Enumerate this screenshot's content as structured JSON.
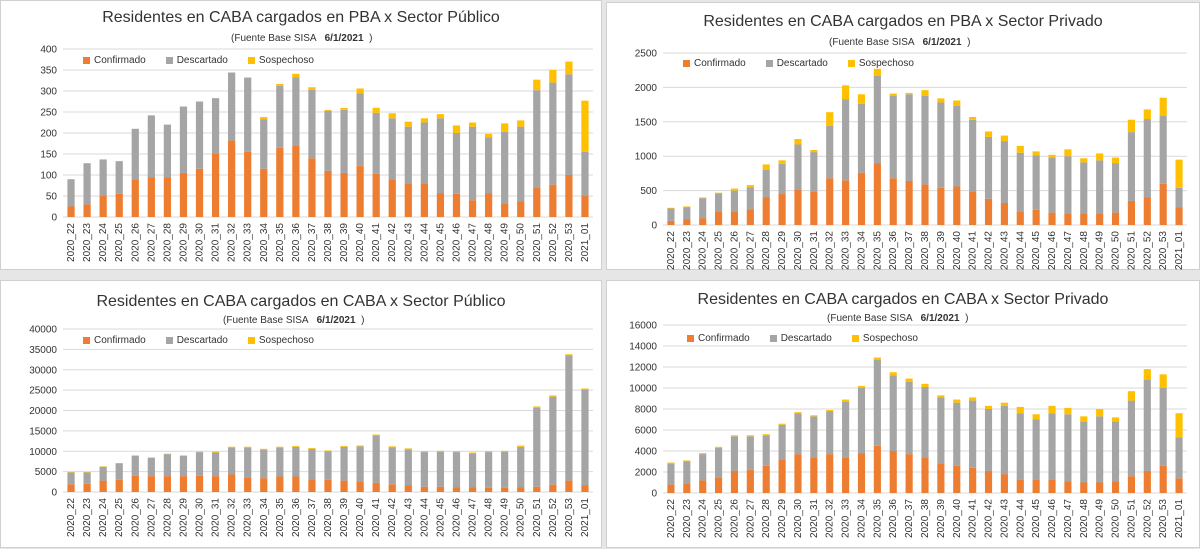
{
  "colors": {
    "confirmado": "#ED7D31",
    "descartado": "#A5A5A5",
    "sospechoso": "#FFC000",
    "grid": "#d9d9d9",
    "axis_text": "#333333"
  },
  "legend": {
    "confirmado": "Confirmado",
    "descartado": "Descartado",
    "sospechoso": "Sospechoso"
  },
  "source": {
    "label": "(Fuente  Base SISA",
    "date": "6/1/2021",
    "close": ")"
  },
  "charts": [
    {
      "title": "Residentes en CABA cargados en PBA x Sector Público"
    },
    {
      "title": "Residentes en CABA cargados en PBA x Sector Privado"
    },
    {
      "title": "Residentes en CABA cargados en CABA x Sector Público"
    },
    {
      "title": "Residentes en CABA cargados en CABA x Sector Privado"
    }
  ],
  "chart_data": [
    {
      "type": "bar",
      "stacked": true,
      "title": "Residentes en CABA cargados en PBA x Sector Público",
      "categories": [
        "2020_22",
        "2020_23",
        "2020_24",
        "2020_25",
        "2020_26",
        "2020_27",
        "2020_28",
        "2020_29",
        "2020_30",
        "2020_31",
        "2020_32",
        "2020_33",
        "2020_34",
        "2020_35",
        "2020_36",
        "2020_37",
        "2020_38",
        "2020_39",
        "2020_40",
        "2020_41",
        "2020_42",
        "2020_43",
        "2020_44",
        "2020_45",
        "2020_46",
        "2020_47",
        "2020_48",
        "2020_49",
        "2020_50",
        "2020_51",
        "2020_52",
        "2020_53",
        "2021_01"
      ],
      "yticks": [
        "0",
        "50",
        "100",
        "150",
        "200",
        "250",
        "300",
        "350",
        "400"
      ],
      "ylim": [
        0,
        400
      ],
      "grid": true,
      "legend_position": "top-left",
      "series": [
        {
          "name": "Confirmado",
          "values": [
            25,
            30,
            50,
            55,
            90,
            95,
            95,
            105,
            115,
            150,
            182,
            155,
            115,
            165,
            170,
            140,
            110,
            105,
            122,
            103,
            90,
            80,
            80,
            57,
            55,
            40,
            57,
            33,
            37,
            70,
            77,
            100,
            50
          ]
        },
        {
          "name": "Descartado",
          "values": [
            65,
            98,
            87,
            78,
            120,
            147,
            125,
            158,
            160,
            133,
            162,
            177,
            118,
            147,
            163,
            163,
            143,
            150,
            172,
            145,
            145,
            135,
            145,
            178,
            145,
            175,
            133,
            170,
            178,
            232,
            243,
            240,
            105
          ]
        },
        {
          "name": "Sospechoso",
          "values": [
            0,
            0,
            0,
            0,
            0,
            0,
            0,
            0,
            0,
            0,
            0,
            0,
            5,
            5,
            8,
            6,
            2,
            5,
            12,
            12,
            12,
            12,
            10,
            10,
            18,
            10,
            8,
            20,
            15,
            25,
            30,
            30,
            122
          ]
        }
      ]
    },
    {
      "type": "bar",
      "stacked": true,
      "title": "Residentes en CABA cargados en PBA x Sector Privado",
      "categories": [
        "2020_22",
        "2020_23",
        "2020_24",
        "2020_25",
        "2020_26",
        "2020_27",
        "2020_28",
        "2020_29",
        "2020_30",
        "2020_31",
        "2020_32",
        "2020_33",
        "2020_34",
        "2020_35",
        "2020_36",
        "2020_37",
        "2020_38",
        "2020_39",
        "2020_40",
        "2020_41",
        "2020_42",
        "2020_43",
        "2020_44",
        "2020_45",
        "2020_46",
        "2020_47",
        "2020_48",
        "2020_49",
        "2020_50",
        "2020_51",
        "2020_52",
        "2020_53",
        "2021_01"
      ],
      "yticks": [
        "0",
        "500",
        "1000",
        "1500",
        "2000",
        "2500"
      ],
      "ylim": [
        0,
        2500
      ],
      "grid": true,
      "legend_position": "top-left",
      "series": [
        {
          "name": "Confirmado",
          "values": [
            60,
            80,
            100,
            200,
            200,
            230,
            400,
            450,
            520,
            480,
            680,
            650,
            760,
            900,
            680,
            640,
            590,
            540,
            560,
            480,
            380,
            320,
            200,
            220,
            180,
            160,
            170,
            160,
            180,
            350,
            400,
            600,
            260
          ]
        },
        {
          "name": "Descartado",
          "values": [
            180,
            180,
            290,
            260,
            300,
            320,
            400,
            440,
            650,
            580,
            760,
            1180,
            1000,
            1270,
            1200,
            1260,
            1290,
            1240,
            1170,
            1050,
            900,
            900,
            850,
            790,
            800,
            840,
            740,
            780,
            720,
            1000,
            1140,
            990,
            280
          ]
        },
        {
          "name": "Sospechoso",
          "values": [
            10,
            10,
            10,
            10,
            30,
            30,
            80,
            50,
            80,
            30,
            200,
            200,
            140,
            100,
            30,
            20,
            80,
            60,
            80,
            40,
            80,
            80,
            100,
            60,
            40,
            100,
            60,
            100,
            80,
            180,
            140,
            260,
            410
          ]
        }
      ]
    },
    {
      "type": "bar",
      "stacked": true,
      "title": "Residentes en CABA cargados en CABA x Sector Público",
      "categories": [
        "2020_22",
        "2020_23",
        "2020_24",
        "2020_25",
        "2020_26",
        "2020_27",
        "2020_28",
        "2020_29",
        "2020_30",
        "2020_31",
        "2020_32",
        "2020_33",
        "2020_34",
        "2020_35",
        "2020_36",
        "2020_37",
        "2020_38",
        "2020_39",
        "2020_40",
        "2020_41",
        "2020_42",
        "2020_43",
        "2020_44",
        "2020_45",
        "2020_46",
        "2020_47",
        "2020_48",
        "2020_49",
        "2020_50",
        "2020_51",
        "2020_52",
        "2020_53",
        "2021_01"
      ],
      "yticks": [
        "0",
        "5000",
        "10000",
        "15000",
        "20000",
        "25000",
        "30000",
        "35000",
        "40000"
      ],
      "ylim": [
        0,
        40000
      ],
      "grid": true,
      "legend_position": "top-left",
      "series": [
        {
          "name": "Confirmado",
          "values": [
            1900,
            2000,
            2800,
            3000,
            4000,
            3900,
            3900,
            3900,
            4000,
            3900,
            4300,
            3600,
            3400,
            3800,
            3800,
            3100,
            3000,
            2800,
            2600,
            2300,
            1900,
            1600,
            1300,
            1300,
            1200,
            1200,
            1000,
            1000,
            1100,
            1300,
            1800,
            2800,
            1700
          ]
        },
        {
          "name": "Descartado",
          "values": [
            2900,
            2800,
            3400,
            4000,
            4900,
            4500,
            5400,
            5000,
            5800,
            5800,
            6600,
            7300,
            7000,
            7100,
            7300,
            7500,
            7000,
            8300,
            8600,
            11600,
            9100,
            8900,
            8500,
            8600,
            8600,
            8300,
            8800,
            8900,
            10000,
            19400,
            21600,
            30700,
            23500
          ]
        },
        {
          "name": "Sospechoso",
          "values": [
            100,
            100,
            100,
            100,
            100,
            100,
            100,
            100,
            100,
            200,
            200,
            200,
            200,
            200,
            200,
            200,
            200,
            200,
            200,
            200,
            200,
            200,
            200,
            200,
            200,
            200,
            200,
            200,
            300,
            300,
            300,
            300,
            200
          ]
        }
      ]
    },
    {
      "type": "bar",
      "stacked": true,
      "title": "Residentes en CABA cargados en CABA x Sector Privado",
      "categories": [
        "2020_22",
        "2020_23",
        "2020_24",
        "2020_25",
        "2020_26",
        "2020_27",
        "2020_28",
        "2020_29",
        "2020_30",
        "2020_31",
        "2020_32",
        "2020_33",
        "2020_34",
        "2020_35",
        "2020_36",
        "2020_37",
        "2020_38",
        "2020_39",
        "2020_40",
        "2020_41",
        "2020_42",
        "2020_43",
        "2020_44",
        "2020_45",
        "2020_46",
        "2020_47",
        "2020_48",
        "2020_49",
        "2020_50",
        "2020_51",
        "2020_52",
        "2020_53",
        "2021_01"
      ],
      "yticks": [
        "0",
        "2000",
        "4000",
        "6000",
        "8000",
        "10000",
        "12000",
        "14000",
        "16000"
      ],
      "ylim": [
        0,
        16000
      ],
      "grid": true,
      "legend_position": "top-left",
      "series": [
        {
          "name": "Confirmado",
          "values": [
            800,
            900,
            1200,
            1500,
            2100,
            2200,
            2600,
            3200,
            3700,
            3400,
            3700,
            3400,
            3800,
            4500,
            4000,
            3700,
            3400,
            2800,
            2600,
            2400,
            2100,
            1800,
            1300,
            1300,
            1300,
            1100,
            1000,
            1000,
            1100,
            1600,
            2100,
            2600,
            1400
          ]
        },
        {
          "name": "Descartado",
          "values": [
            2000,
            2100,
            2500,
            2800,
            3300,
            3200,
            2900,
            3300,
            3900,
            3900,
            4100,
            5300,
            6200,
            8200,
            7200,
            6900,
            6700,
            6300,
            6000,
            6400,
            5900,
            6500,
            6300,
            5700,
            6300,
            6400,
            5800,
            6300,
            5700,
            7200,
            8700,
            7400,
            3900
          ]
        },
        {
          "name": "Sospechoso",
          "values": [
            100,
            100,
            100,
            100,
            100,
            100,
            100,
            100,
            100,
            100,
            100,
            200,
            200,
            200,
            300,
            300,
            300,
            200,
            300,
            300,
            300,
            300,
            600,
            500,
            700,
            600,
            500,
            700,
            400,
            900,
            1000,
            1300,
            2300
          ]
        }
      ]
    }
  ]
}
